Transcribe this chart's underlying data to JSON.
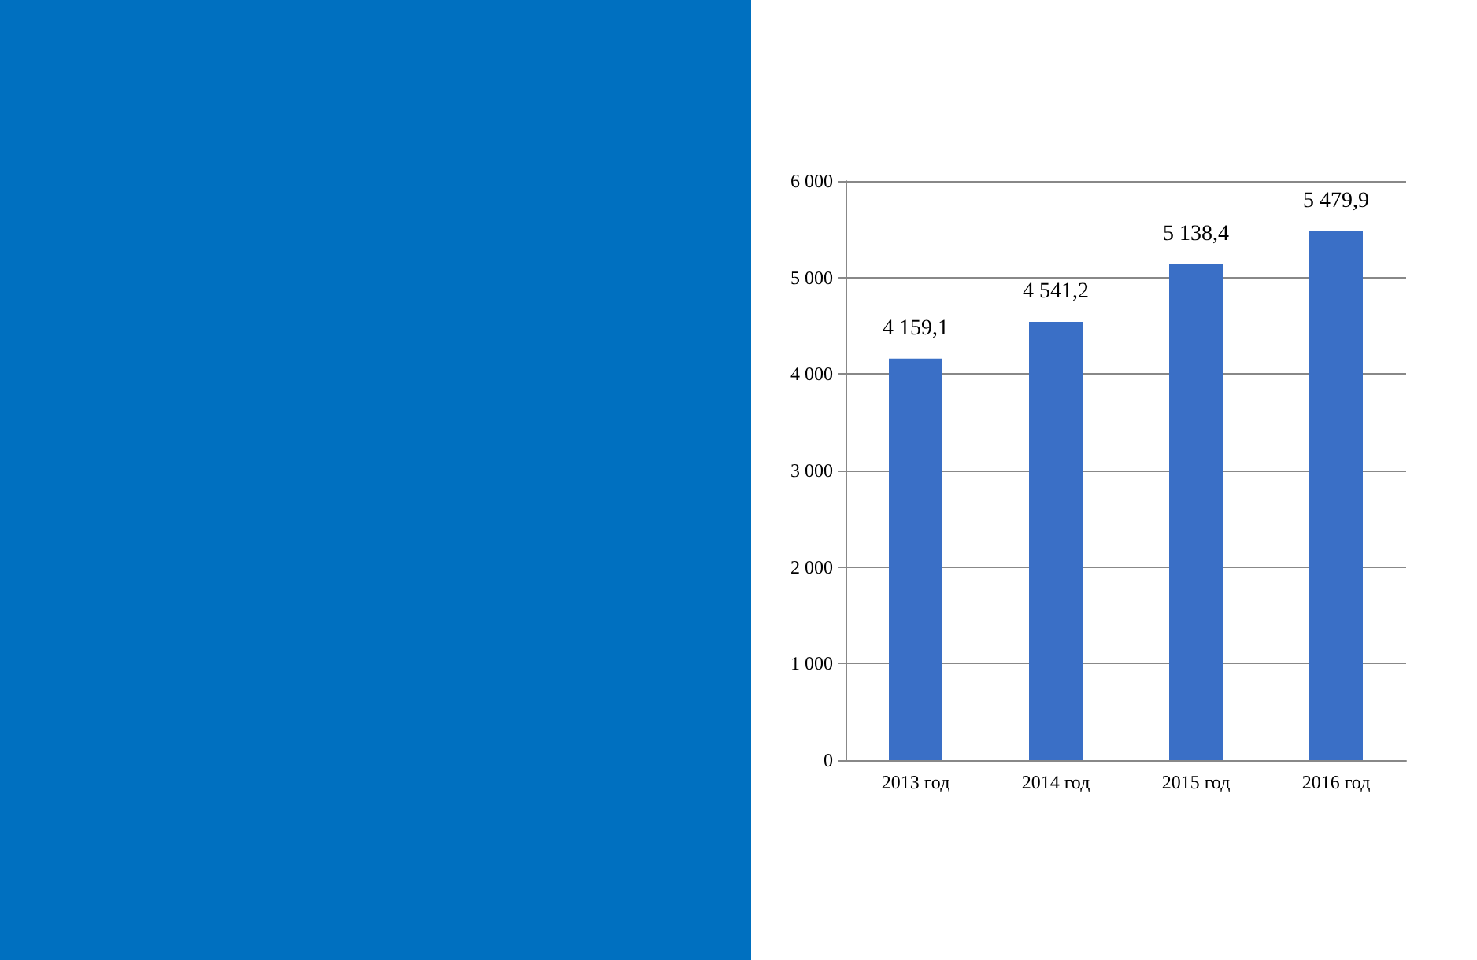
{
  "chart_data": {
    "type": "bar",
    "categories": [
      "2013 год",
      "2014 год",
      "2015 год",
      "2016 год"
    ],
    "values": [
      4159.1,
      4541.2,
      5138.4,
      5479.9
    ],
    "color": "#3a6fc6",
    "value_labels": [
      "4 159,1",
      "4 541,2",
      "5 138,4",
      "5 479,9"
    ],
    "ylim": [
      0,
      6000
    ],
    "yticks": [
      {
        "value": 0,
        "label": "0"
      },
      {
        "value": 1000,
        "label": "1 000"
      },
      {
        "value": 2000,
        "label": "2 000"
      },
      {
        "value": 3000,
        "label": "3 000"
      },
      {
        "value": 4000,
        "label": "4 000"
      },
      {
        "value": 5000,
        "label": "5 000"
      },
      {
        "value": 6000,
        "label": "6 000"
      }
    ],
    "grid": "y"
  }
}
